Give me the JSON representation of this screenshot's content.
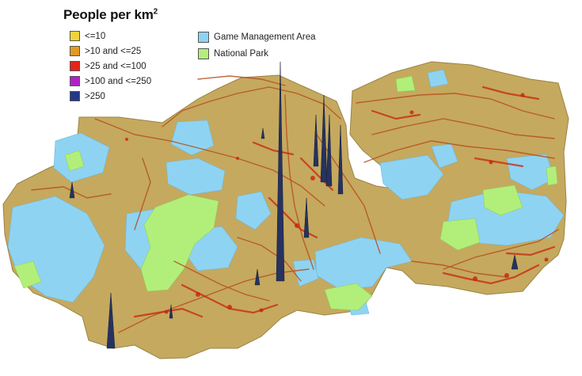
{
  "legend": {
    "title": "People per km",
    "title_superscript": "2",
    "population_classes": [
      {
        "label": "<=10",
        "color": "#ecd43a"
      },
      {
        "label": ">10 and <=25",
        "color": "#e39a23"
      },
      {
        "label": ">25 and <=100",
        "color": "#e3241b"
      },
      {
        "label": ">100 and <=250",
        "color": "#b122c6"
      },
      {
        "label": ">250",
        "color": "#24388a"
      }
    ],
    "area_classes": [
      {
        "label": "Game Management Area",
        "color": "#8fd3f2"
      },
      {
        "label": "National Park",
        "color": "#b2ef7a"
      }
    ]
  },
  "colors": {
    "country_base": "#c5a95e",
    "road_density": "#b5501f",
    "urban_density": "#c8230f",
    "spike": "#26335e"
  }
}
